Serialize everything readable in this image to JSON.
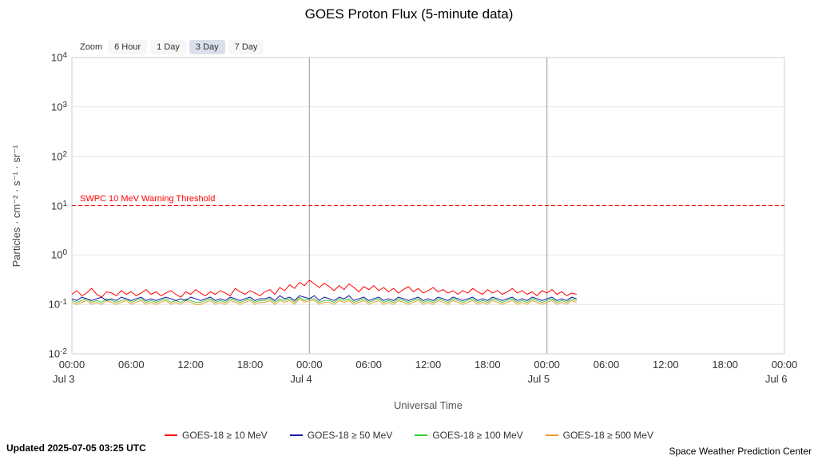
{
  "title": "GOES Proton Flux (5-minute data)",
  "zoom": {
    "label": "Zoom",
    "options": [
      {
        "label": "6 Hour",
        "selected": false
      },
      {
        "label": "1 Day",
        "selected": false
      },
      {
        "label": "3 Day",
        "selected": true
      },
      {
        "label": "7 Day",
        "selected": false
      }
    ]
  },
  "footer": {
    "updated": "Updated 2025-07-05 03:25 UTC",
    "credit": "Space Weather Prediction Center"
  },
  "chart_data": {
    "type": "line",
    "title": "GOES Proton Flux (5-minute data)",
    "xlabel": "Universal Time",
    "ylabel": "Particles · cm⁻² · s⁻¹ · sr⁻¹",
    "y_scale": "log",
    "ylim": [
      0.01,
      10000
    ],
    "y_ticks": [
      {
        "value": 10000,
        "base": "10",
        "exp": "4"
      },
      {
        "value": 1000,
        "base": "10",
        "exp": "3"
      },
      {
        "value": 100,
        "base": "10",
        "exp": "2"
      },
      {
        "value": 10,
        "base": "10",
        "exp": "1"
      },
      {
        "value": 1,
        "base": "10",
        "exp": "0"
      },
      {
        "value": 0.1,
        "base": "10",
        "exp": "-1"
      },
      {
        "value": 0.01,
        "base": "10",
        "exp": "-2"
      }
    ],
    "x_hours_range": [
      0,
      72
    ],
    "x_ticks": [
      {
        "hour": 0,
        "label": "00:00",
        "date": "Jul 3"
      },
      {
        "hour": 6,
        "label": "06:00"
      },
      {
        "hour": 12,
        "label": "12:00"
      },
      {
        "hour": 18,
        "label": "18:00"
      },
      {
        "hour": 24,
        "label": "00:00",
        "date": "Jul 4"
      },
      {
        "hour": 30,
        "label": "06:00"
      },
      {
        "hour": 36,
        "label": "12:00"
      },
      {
        "hour": 42,
        "label": "18:00"
      },
      {
        "hour": 48,
        "label": "00:00",
        "date": "Jul 5"
      },
      {
        "hour": 54,
        "label": "06:00"
      },
      {
        "hour": 60,
        "label": "12:00"
      },
      {
        "hour": 66,
        "label": "18:00"
      },
      {
        "hour": 72,
        "label": "00:00",
        "date": "Jul 6"
      }
    ],
    "day_gridlines_hours": [
      24,
      48
    ],
    "threshold": {
      "value": 10,
      "label": "SWPC 10 MeV Warning Threshold",
      "color": "#ff0000"
    },
    "sample_start_hours": 0,
    "sample_step_hours": 0.5,
    "series": [
      {
        "name": "GOES-18 ≥ 10 MeV",
        "color": "#ff0000",
        "values": [
          0.16,
          0.19,
          0.15,
          0.17,
          0.21,
          0.16,
          0.14,
          0.18,
          0.17,
          0.15,
          0.19,
          0.16,
          0.18,
          0.15,
          0.17,
          0.2,
          0.16,
          0.18,
          0.15,
          0.17,
          0.19,
          0.16,
          0.14,
          0.18,
          0.16,
          0.2,
          0.17,
          0.15,
          0.18,
          0.16,
          0.19,
          0.17,
          0.15,
          0.21,
          0.18,
          0.16,
          0.19,
          0.17,
          0.15,
          0.18,
          0.2,
          0.16,
          0.22,
          0.19,
          0.25,
          0.21,
          0.28,
          0.24,
          0.31,
          0.26,
          0.22,
          0.27,
          0.23,
          0.19,
          0.24,
          0.2,
          0.26,
          0.22,
          0.18,
          0.23,
          0.2,
          0.24,
          0.19,
          0.22,
          0.18,
          0.21,
          0.17,
          0.2,
          0.23,
          0.18,
          0.21,
          0.17,
          0.19,
          0.22,
          0.18,
          0.2,
          0.17,
          0.19,
          0.16,
          0.19,
          0.17,
          0.21,
          0.18,
          0.16,
          0.2,
          0.17,
          0.19,
          0.16,
          0.18,
          0.21,
          0.17,
          0.19,
          0.16,
          0.18,
          0.15,
          0.19,
          0.17,
          0.2,
          0.16,
          0.18,
          0.15,
          0.17,
          0.16
        ]
      },
      {
        "name": "GOES-18 ≥ 50 MeV",
        "color": "#1a1aaa",
        "values": [
          0.13,
          0.12,
          0.14,
          0.13,
          0.12,
          0.13,
          0.14,
          0.12,
          0.13,
          0.12,
          0.14,
          0.13,
          0.12,
          0.13,
          0.14,
          0.12,
          0.13,
          0.12,
          0.13,
          0.14,
          0.13,
          0.12,
          0.13,
          0.12,
          0.14,
          0.13,
          0.12,
          0.13,
          0.14,
          0.12,
          0.13,
          0.12,
          0.14,
          0.13,
          0.12,
          0.13,
          0.14,
          0.12,
          0.13,
          0.13,
          0.14,
          0.12,
          0.15,
          0.13,
          0.14,
          0.12,
          0.15,
          0.14,
          0.13,
          0.15,
          0.12,
          0.14,
          0.13,
          0.12,
          0.14,
          0.13,
          0.15,
          0.12,
          0.13,
          0.14,
          0.12,
          0.13,
          0.14,
          0.12,
          0.13,
          0.12,
          0.14,
          0.13,
          0.12,
          0.13,
          0.14,
          0.12,
          0.13,
          0.12,
          0.14,
          0.13,
          0.12,
          0.14,
          0.13,
          0.12,
          0.13,
          0.14,
          0.12,
          0.13,
          0.12,
          0.14,
          0.13,
          0.12,
          0.13,
          0.14,
          0.12,
          0.13,
          0.12,
          0.14,
          0.13,
          0.12,
          0.13,
          0.14,
          0.12,
          0.13,
          0.12,
          0.14,
          0.13
        ]
      },
      {
        "name": "GOES-18 ≥ 100 MeV",
        "color": "#33cc33",
        "values": [
          0.12,
          0.11,
          0.12,
          0.13,
          0.11,
          0.12,
          0.11,
          0.13,
          0.12,
          0.11,
          0.12,
          0.13,
          0.11,
          0.12,
          0.13,
          0.11,
          0.12,
          0.11,
          0.12,
          0.13,
          0.11,
          0.12,
          0.11,
          0.13,
          0.12,
          0.11,
          0.11,
          0.12,
          0.13,
          0.11,
          0.12,
          0.11,
          0.13,
          0.12,
          0.11,
          0.12,
          0.13,
          0.11,
          0.12,
          0.12,
          0.13,
          0.11,
          0.13,
          0.12,
          0.13,
          0.11,
          0.14,
          0.12,
          0.13,
          0.13,
          0.11,
          0.12,
          0.12,
          0.11,
          0.13,
          0.12,
          0.13,
          0.11,
          0.12,
          0.13,
          0.11,
          0.12,
          0.13,
          0.11,
          0.12,
          0.11,
          0.13,
          0.12,
          0.11,
          0.12,
          0.13,
          0.11,
          0.12,
          0.11,
          0.13,
          0.12,
          0.11,
          0.13,
          0.12,
          0.11,
          0.12,
          0.13,
          0.11,
          0.12,
          0.11,
          0.13,
          0.12,
          0.11,
          0.12,
          0.13,
          0.11,
          0.12,
          0.11,
          0.13,
          0.12,
          0.11,
          0.12,
          0.13,
          0.11,
          0.12,
          0.11,
          0.13,
          0.12
        ]
      },
      {
        "name": "GOES-18 ≥ 500 MeV",
        "color": "#f09b2f",
        "values": [
          0.11,
          0.1,
          0.11,
          0.12,
          0.1,
          0.11,
          0.1,
          0.12,
          0.11,
          0.1,
          0.11,
          0.12,
          0.1,
          0.11,
          0.12,
          0.1,
          0.11,
          0.1,
          0.11,
          0.12,
          0.1,
          0.11,
          0.1,
          0.12,
          0.11,
          0.1,
          0.1,
          0.11,
          0.12,
          0.1,
          0.11,
          0.1,
          0.12,
          0.11,
          0.1,
          0.11,
          0.12,
          0.1,
          0.11,
          0.11,
          0.12,
          0.1,
          0.12,
          0.11,
          0.12,
          0.1,
          0.13,
          0.11,
          0.12,
          0.12,
          0.1,
          0.11,
          0.11,
          0.1,
          0.12,
          0.11,
          0.12,
          0.1,
          0.11,
          0.12,
          0.1,
          0.11,
          0.12,
          0.1,
          0.11,
          0.1,
          0.12,
          0.11,
          0.1,
          0.11,
          0.12,
          0.1,
          0.11,
          0.1,
          0.12,
          0.11,
          0.1,
          0.12,
          0.11,
          0.1,
          0.11,
          0.12,
          0.1,
          0.11,
          0.1,
          0.12,
          0.11,
          0.1,
          0.11,
          0.12,
          0.1,
          0.11,
          0.1,
          0.12,
          0.11,
          0.1,
          0.11,
          0.12,
          0.1,
          0.11,
          0.1,
          0.12,
          0.11
        ]
      }
    ]
  }
}
